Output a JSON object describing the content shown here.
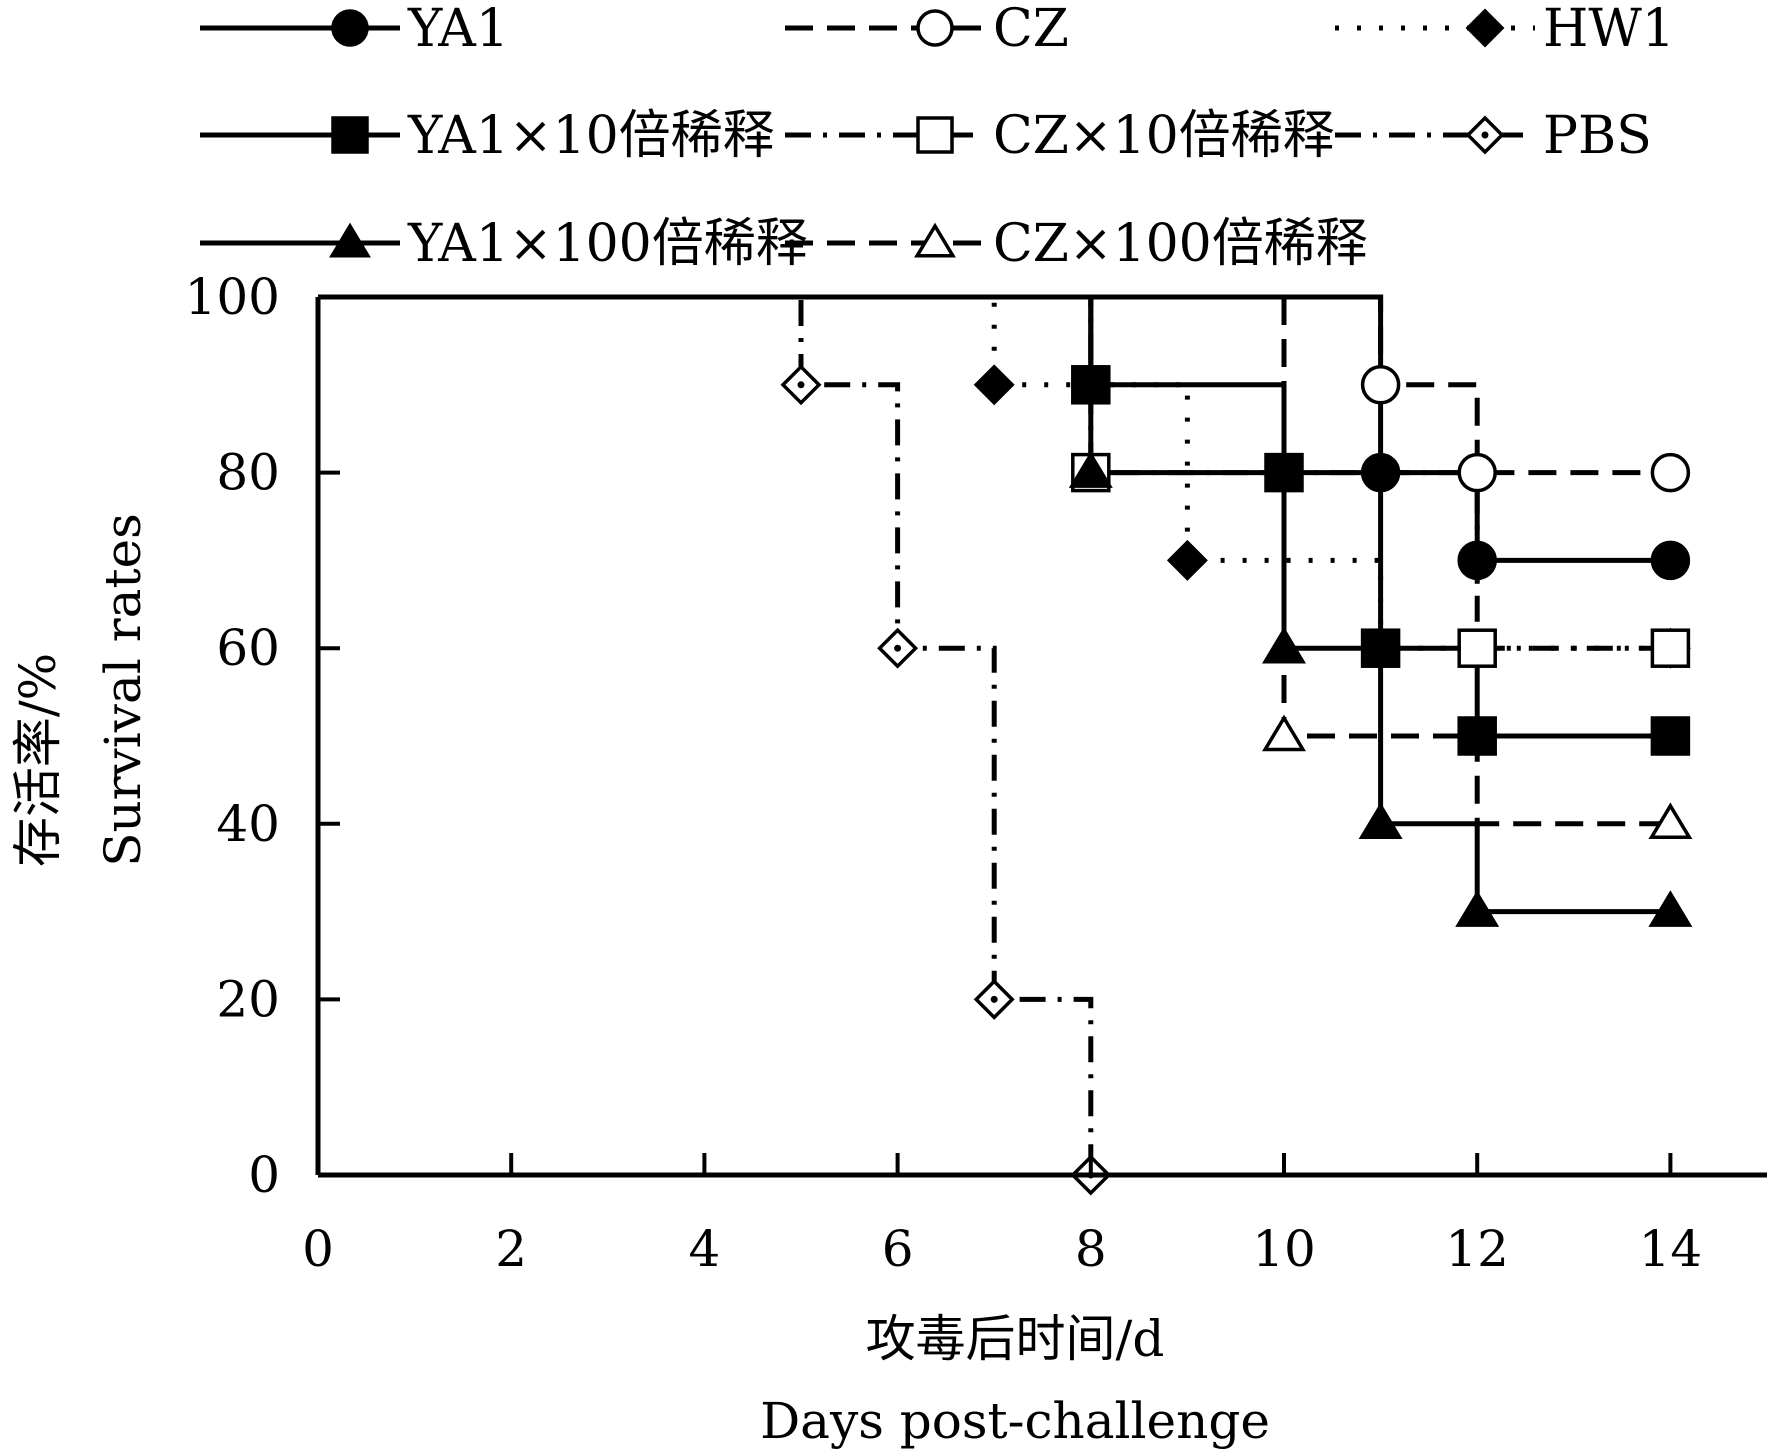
{
  "chart_data": {
    "type": "line",
    "step": true,
    "xlabel": "攻毒后时间/d",
    "xlabel_en": "Days post-challenge",
    "ylabel": "存活率/%",
    "ylabel_en": "Survival rates",
    "xlim": [
      0,
      15
    ],
    "ylim": [
      0,
      100
    ],
    "xticks": [
      0,
      2,
      4,
      6,
      8,
      10,
      12,
      14
    ],
    "yticks": [
      0,
      20,
      40,
      60,
      80,
      100
    ],
    "legend_position": "top",
    "series": [
      {
        "name": "YA1",
        "line": "solid",
        "marker": "circle",
        "fill": "filled",
        "x": [
          0,
          11,
          12,
          14
        ],
        "y": [
          100,
          80,
          70,
          70
        ],
        "markers_x": [
          11,
          12,
          14
        ]
      },
      {
        "name": "CZ",
        "line": "dashed",
        "marker": "circle",
        "fill": "open",
        "x": [
          0,
          11,
          12,
          14
        ],
        "y": [
          100,
          90,
          80,
          80
        ],
        "markers_x": [
          11,
          12,
          14
        ]
      },
      {
        "name": "HW1",
        "line": "dotted",
        "marker": "diamond",
        "fill": "filled",
        "x": [
          0,
          7,
          9,
          11,
          14
        ],
        "y": [
          100,
          90,
          70,
          60,
          60
        ],
        "markers_x": [
          7,
          9,
          14
        ]
      },
      {
        "name": "YA1×10倍稀释",
        "line": "solid",
        "marker": "square",
        "fill": "filled",
        "x": [
          0,
          8,
          10,
          11,
          12,
          14
        ],
        "y": [
          100,
          90,
          80,
          60,
          50,
          50
        ],
        "markers_x": [
          8,
          10,
          11,
          12,
          14
        ]
      },
      {
        "name": "CZ×10倍稀释",
        "line": "dashdot",
        "marker": "square",
        "fill": "open",
        "x": [
          0,
          8,
          12,
          14
        ],
        "y": [
          100,
          80,
          60,
          60
        ],
        "markers_x": [
          8,
          12,
          14
        ]
      },
      {
        "name": "PBS",
        "line": "dashdot",
        "marker": "diamond",
        "fill": "open-dot",
        "x": [
          0,
          5,
          6,
          7,
          8
        ],
        "y": [
          100,
          90,
          60,
          20,
          0
        ],
        "markers_x": [
          5,
          6,
          7,
          8
        ]
      },
      {
        "name": "YA1×100倍稀释",
        "line": "solid",
        "marker": "triangle",
        "fill": "filled",
        "x": [
          0,
          8,
          10,
          11,
          12,
          14
        ],
        "y": [
          100,
          80,
          60,
          40,
          30,
          30
        ],
        "markers_x": [
          8,
          10,
          11,
          12,
          14
        ]
      },
      {
        "name": "CZ×100倍稀释",
        "line": "dashed",
        "marker": "triangle",
        "fill": "open",
        "x": [
          0,
          10,
          12,
          14
        ],
        "y": [
          100,
          50,
          40,
          40
        ],
        "markers_x": [
          10,
          14
        ]
      }
    ]
  }
}
